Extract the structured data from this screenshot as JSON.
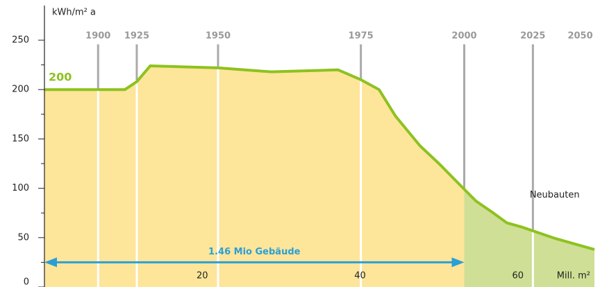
{
  "chart_data": {
    "type": "area",
    "y_label": "kWh/m² a",
    "x_label": "Mill. m²",
    "ylim": [
      0,
      250
    ],
    "yticks": [
      0,
      50,
      100,
      150,
      200,
      250
    ],
    "yminorticks": [
      25,
      75,
      125,
      175,
      225
    ],
    "xlim": [
      0,
      69.7
    ],
    "xticks": [
      20,
      40,
      60
    ],
    "series": [
      {
        "name": "200",
        "color": "#8dc21f",
        "x": [
          0,
          10.2,
          11.7,
          13.4,
          22,
          28.7,
          37.2,
          40.1,
          42.4,
          44.5,
          47.6,
          50,
          53.2,
          54.7,
          56.7,
          58.6,
          60.4,
          64.8,
          69.7
        ],
        "values": [
          200,
          200,
          208,
          224,
          222,
          218,
          220,
          210,
          200,
          173,
          143,
          125,
          99,
          87,
          76,
          65,
          61,
          49,
          38
        ]
      }
    ],
    "fill_colors": [
      "#fde59a",
      "#cfdf95"
    ],
    "split_x": 53.2,
    "year_markers": [
      {
        "year": 1900,
        "x": 6.8,
        "line": true
      },
      {
        "year": 1925,
        "x": 11.7,
        "line": true
      },
      {
        "year": 1950,
        "x": 22,
        "line": true
      },
      {
        "year": 1975,
        "x": 40.1,
        "line": true
      },
      {
        "year": 2000,
        "x": 53.2,
        "line": true
      },
      {
        "year": 2025,
        "x": 61.9,
        "line": true
      },
      {
        "year": 2050,
        "x": 67.9,
        "line": false
      }
    ],
    "arrow": {
      "label": "1.46 Mio Gebäude",
      "x": [
        0,
        53.2
      ],
      "y": 25,
      "color": "#2a9fd6"
    },
    "annotation": {
      "text": "Neubauten",
      "x": 61.5,
      "y": 93
    }
  }
}
